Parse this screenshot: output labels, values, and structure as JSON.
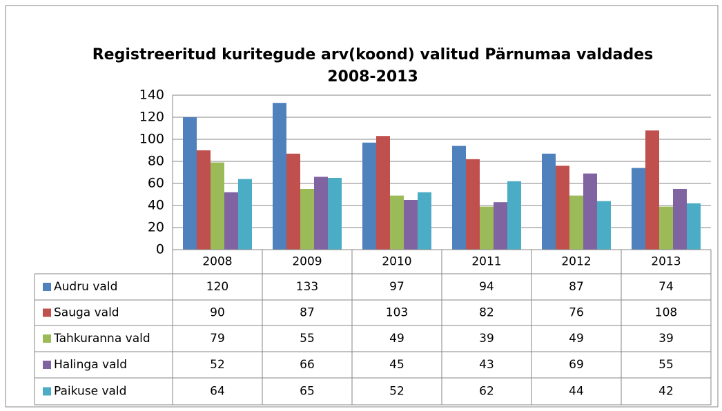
{
  "chart_data": {
    "type": "bar",
    "title": [
      "Registreeritud kuritegude arv(koond) valitud Pärnumaa valdades",
      "2008-2013"
    ],
    "categories": [
      "2008",
      "2009",
      "2010",
      "2011",
      "2012",
      "2013"
    ],
    "series": [
      {
        "name": "Audru vald",
        "color": "#4f81bd",
        "values": [
          120,
          133,
          97,
          94,
          87,
          74
        ]
      },
      {
        "name": "Sauga vald",
        "color": "#c0504d",
        "values": [
          90,
          87,
          103,
          82,
          76,
          108
        ]
      },
      {
        "name": "Tahkuranna vald",
        "color": "#9bbb59",
        "values": [
          79,
          55,
          49,
          39,
          49,
          39
        ]
      },
      {
        "name": "Halinga vald",
        "color": "#8064a2",
        "values": [
          52,
          66,
          45,
          43,
          69,
          55
        ]
      },
      {
        "name": "Paikuse vald",
        "color": "#4bacc6",
        "values": [
          64,
          65,
          52,
          62,
          44,
          42
        ]
      }
    ],
    "ylim": [
      0,
      140
    ],
    "yticks": [
      0,
      20,
      40,
      60,
      80,
      100,
      120,
      140
    ],
    "grid": true,
    "data_table": true
  }
}
